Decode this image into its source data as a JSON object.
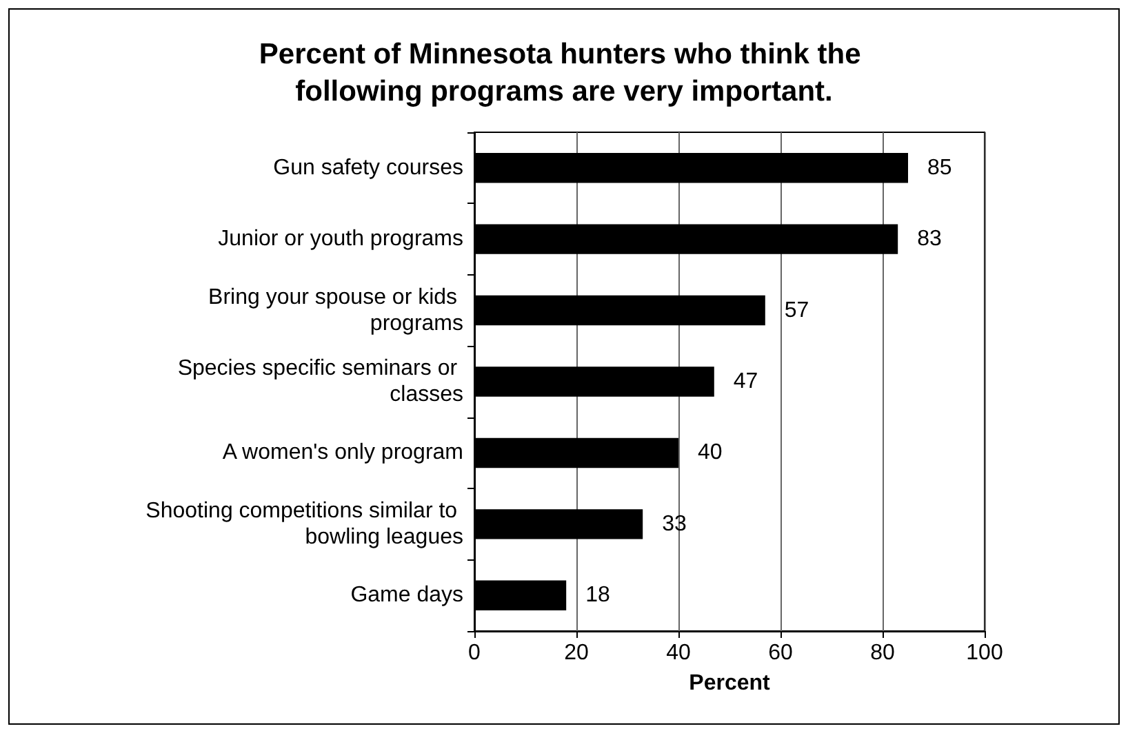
{
  "chart_data": {
    "type": "bar",
    "orientation": "horizontal",
    "title": "Percent of Minnesota hunters who think the following programs are very important.",
    "xlabel": "Percent",
    "categories": [
      "Gun safety courses",
      "Junior or youth programs",
      "Bring your spouse or kids programs",
      "Species specific seminars or classes",
      "A women's only program",
      "Shooting competitions similar to bowling leagues",
      "Game days"
    ],
    "values": [
      85,
      83,
      57,
      47,
      40,
      33,
      18
    ],
    "color": "#000000",
    "data_labels": true,
    "xlim": [
      0,
      100
    ],
    "xticks": [
      0,
      20,
      40,
      60,
      80,
      100
    ],
    "grid": "x"
  }
}
